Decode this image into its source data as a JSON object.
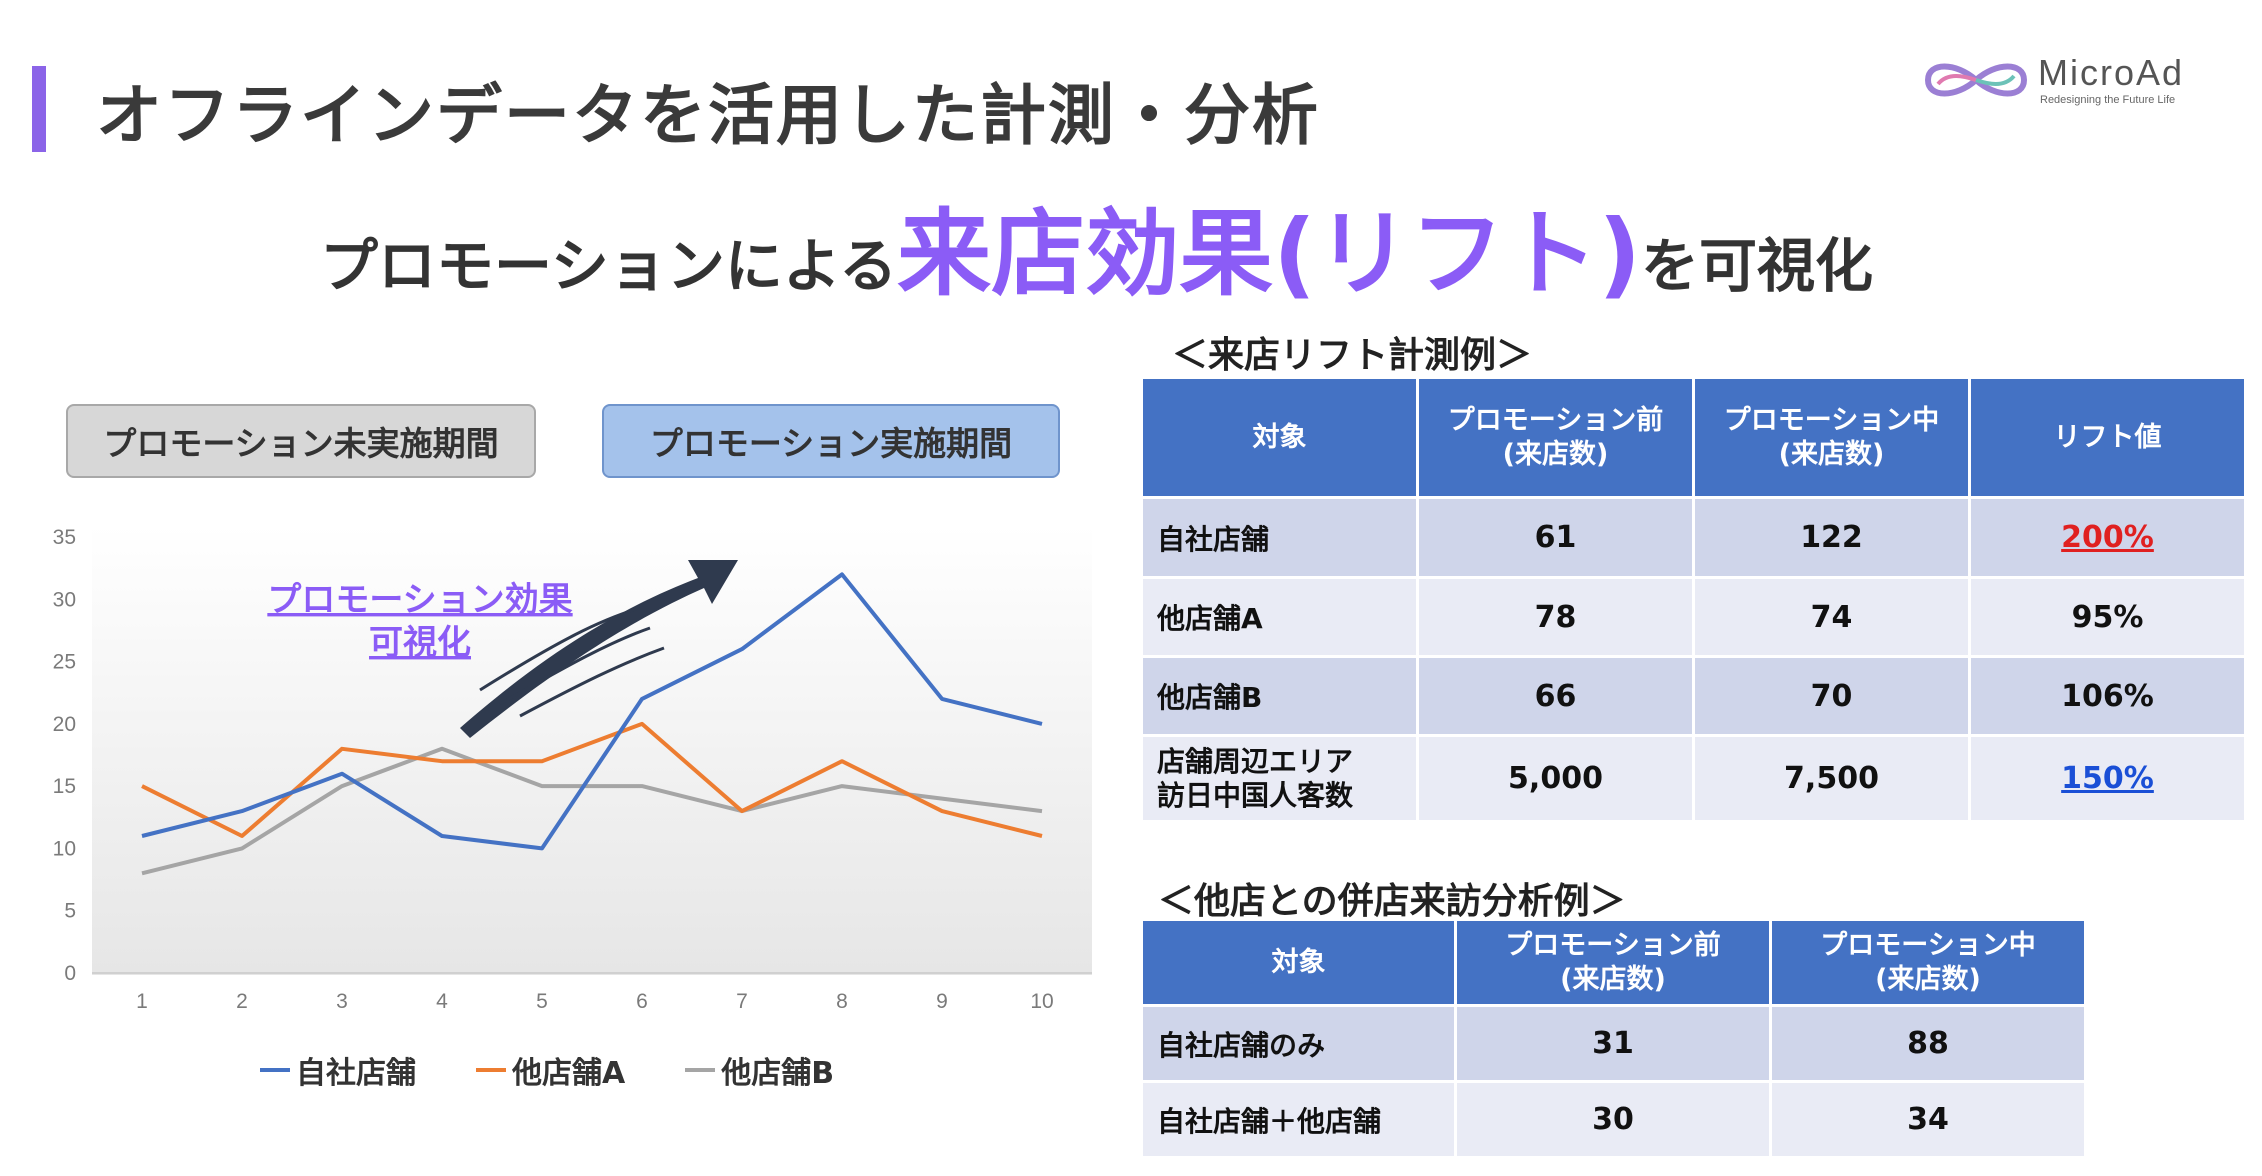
{
  "header": {
    "title": "オフラインデータを活用した計測・分析",
    "headline_part1": "プロモーションによる",
    "headline_highlight": "来店効果(リフト)",
    "headline_part2": "を可視化"
  },
  "logo": {
    "name": "MicroAd",
    "tagline": "Redesigning the Future Life"
  },
  "periods": {
    "before": "プロモーション未実施期間",
    "during": "プロモーション実施期間"
  },
  "annotation": {
    "line1": "プロモーション効果",
    "line2": "可視化"
  },
  "colors": {
    "accent": "#8b5cf6",
    "table_header": "#4472c4",
    "own_store": "#4472c4",
    "store_a": "#ed7d31",
    "store_b": "#a5a5a5"
  },
  "chart_data": {
    "type": "line",
    "x": [
      1,
      2,
      3,
      4,
      5,
      6,
      7,
      8,
      9,
      10
    ],
    "ylim": [
      0,
      35
    ],
    "yticks": [
      0,
      5,
      10,
      15,
      20,
      25,
      30,
      35
    ],
    "series": [
      {
        "name": "自社店舗",
        "color": "#4472c4",
        "values": [
          11,
          13,
          16,
          11,
          10,
          22,
          26,
          32,
          22,
          20
        ]
      },
      {
        "name": "他店舗A",
        "color": "#ed7d31",
        "values": [
          15,
          11,
          18,
          17,
          17,
          20,
          13,
          17,
          13,
          11
        ]
      },
      {
        "name": "他店舗B",
        "color": "#a5a5a5",
        "values": [
          8,
          10,
          15,
          18,
          15,
          15,
          13,
          15,
          14,
          13
        ]
      }
    ],
    "legend": "bottom",
    "grid": false
  },
  "lift_table": {
    "title": "＜来店リフト計測例＞",
    "headers": [
      "対象",
      "プロモーション前\n(来店数)",
      "プロモーション中\n(来店数)",
      "リフト値"
    ],
    "rows": [
      {
        "label": "自社店舗",
        "before": "61",
        "during": "122",
        "lift": "200%",
        "style": "red"
      },
      {
        "label": "他店舗A",
        "before": "78",
        "during": "74",
        "lift": "95%",
        "style": ""
      },
      {
        "label": "他店舗B",
        "before": "66",
        "during": "70",
        "lift": "106%",
        "style": ""
      },
      {
        "label": "店舗周辺エリア\n訪日中国人客数",
        "before": "5,000",
        "during": "7,500",
        "lift": "150%",
        "style": "blue"
      }
    ]
  },
  "cross_table": {
    "title": "＜他店との併店来訪分析例＞",
    "headers": [
      "対象",
      "プロモーション前\n(来店数)",
      "プロモーション中\n(来店数)"
    ],
    "rows": [
      {
        "label": "自社店舗のみ",
        "before": "31",
        "during": "88"
      },
      {
        "label": "自社店舗＋他店舗",
        "before": "30",
        "during": "34"
      }
    ]
  }
}
